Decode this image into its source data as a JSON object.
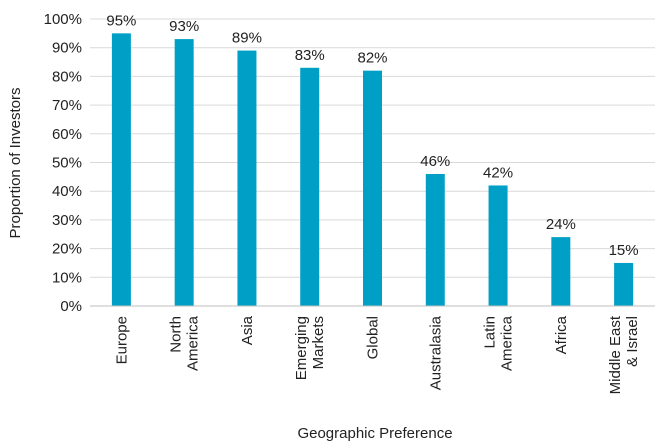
{
  "chart_data": {
    "type": "bar",
    "title": "",
    "xlabel": "Geographic Preference",
    "ylabel": "Proportion of Investors",
    "ylim": [
      0,
      100
    ],
    "yticks": [
      "0%",
      "10%",
      "20%",
      "30%",
      "40%",
      "50%",
      "60%",
      "70%",
      "80%",
      "90%",
      "100%"
    ],
    "grid": true,
    "bar_color": "#00A0C6",
    "categories": [
      [
        "Europe"
      ],
      [
        "North",
        "America"
      ],
      [
        "Asia"
      ],
      [
        "Emerging",
        "Markets"
      ],
      [
        "Global"
      ],
      [
        "Australasia"
      ],
      [
        "Latin",
        "America"
      ],
      [
        "Africa"
      ],
      [
        "Middle East",
        "& Israel"
      ]
    ],
    "values": [
      95,
      93,
      89,
      83,
      82,
      46,
      42,
      24,
      15
    ],
    "value_labels": [
      "95%",
      "93%",
      "89%",
      "83%",
      "82%",
      "46%",
      "42%",
      "24%",
      "15%"
    ]
  }
}
